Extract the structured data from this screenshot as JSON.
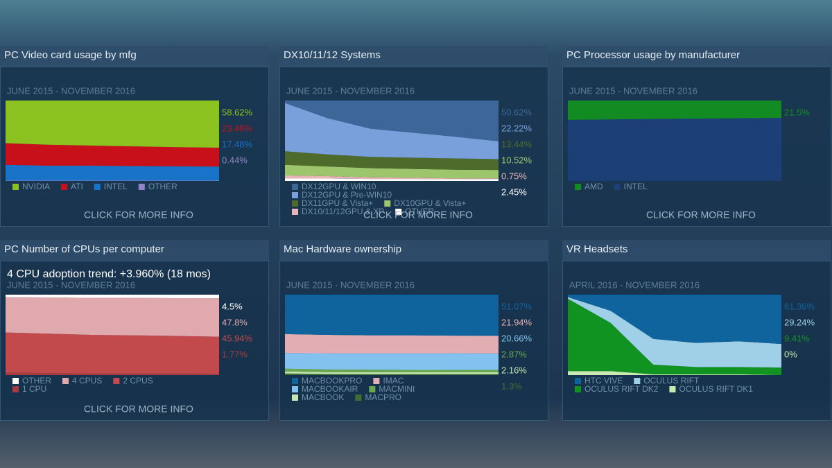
{
  "chart_data": [
    {
      "type": "area",
      "stacked": true,
      "title": "PC Video card usage by mfg",
      "subtitle": "JUNE 2015 - NOVEMBER 2016",
      "footer": "CLICK FOR MORE INFO",
      "categories": [
        null,
        null,
        null,
        null,
        null,
        null
      ],
      "ylim": [
        0,
        100
      ],
      "series": [
        {
          "name": "NVIDIA",
          "color": "#8cc21f",
          "values": [
            53,
            55,
            56,
            57,
            58,
            58.62
          ],
          "value_labels": [
            null,
            null,
            null,
            null,
            null,
            "58.62%"
          ]
        },
        {
          "name": "ATI",
          "color": "#c8101a",
          "values": [
            27,
            26,
            25,
            24.5,
            23.8,
            23.46
          ],
          "value_labels": [
            null,
            null,
            null,
            null,
            null,
            "23.46%"
          ]
        },
        {
          "name": "INTEL",
          "color": "#1874c9",
          "values": [
            19.5,
            18.5,
            18.5,
            18,
            17.8,
            17.48
          ],
          "value_labels": [
            null,
            null,
            null,
            null,
            null,
            "17.48%"
          ]
        },
        {
          "name": "OTHER",
          "color": "#9184c4",
          "values": [
            0.5,
            0.5,
            0.5,
            0.5,
            0.4,
            0.44
          ],
          "value_labels": [
            null,
            null,
            null,
            null,
            null,
            "0.44%"
          ]
        }
      ]
    },
    {
      "type": "area",
      "stacked": true,
      "title": "DX10/11/12 Systems",
      "subtitle": "JUNE 2015 - NOVEMBER 2016",
      "footer": "CLICK FOR MORE INFO",
      "categories": [
        null,
        null,
        null,
        null,
        null,
        null
      ],
      "ylim": [
        0,
        100
      ],
      "series": [
        {
          "name": "DX12GPU & WIN10",
          "color": "#3d6699",
          "values": [
            3,
            22,
            35,
            40,
            45,
            50.62
          ],
          "value_labels": [
            null,
            null,
            null,
            null,
            null,
            "50.62%"
          ]
        },
        {
          "name": "DX12GPU & Pre-WIN10",
          "color": "#7aa0dc",
          "values": [
            60,
            45,
            35,
            31,
            27,
            22.22
          ],
          "value_labels": [
            null,
            null,
            null,
            null,
            null,
            "22.22%"
          ]
        },
        {
          "name": "DX11GPU & Vista+",
          "color": "#4f6b2c",
          "values": [
            17,
            15,
            14,
            14,
            14,
            13.44
          ],
          "value_labels": [
            null,
            null,
            null,
            null,
            null,
            "13.44%"
          ]
        },
        {
          "name": "DX10GPU & Vista+",
          "color": "#9cc56c",
          "values": [
            13,
            12,
            11.5,
            11,
            10.8,
            10.52
          ],
          "value_labels": [
            null,
            null,
            null,
            null,
            null,
            "10.52%"
          ]
        },
        {
          "name": "DX10/11/12GPU & XP",
          "color": "#e6b3b8",
          "values": [
            4,
            3,
            2,
            1.5,
            1,
            0.75
          ],
          "value_labels": [
            null,
            null,
            null,
            null,
            null,
            "0.75%"
          ]
        },
        {
          "name": "OTHER",
          "color": "#ffffff",
          "values": [
            3,
            3,
            2.5,
            2.5,
            2.2,
            2.45
          ],
          "value_labels": [
            null,
            null,
            null,
            null,
            null,
            "2.45%"
          ]
        }
      ]
    },
    {
      "type": "area",
      "stacked": true,
      "title": "PC Processor usage by manufacturer",
      "subtitle": "JUNE 2015 - NOVEMBER 2016",
      "footer": "CLICK FOR MORE INFO",
      "categories": [
        null,
        null,
        null,
        null,
        null,
        null
      ],
      "ylim": [
        0,
        100
      ],
      "series": [
        {
          "name": "AMD",
          "color": "#128c22",
          "values": [
            24,
            23.5,
            23,
            22.5,
            22,
            21.5
          ],
          "value_labels": [
            null,
            null,
            null,
            null,
            null,
            "21.5%"
          ]
        },
        {
          "name": "INTEL",
          "color": "#1d3f78",
          "values": [
            76,
            76.5,
            77,
            77.5,
            78,
            78.5
          ]
        }
      ]
    },
    {
      "type": "area",
      "stacked": true,
      "title": "PC Number of CPUs per computer",
      "subtitle": "JUNE 2015 - NOVEMBER 2016",
      "footer": "CLICK FOR MORE INFO",
      "annotation": "4 CPU adoption trend: +3.960% (18 mos)",
      "categories": [
        null,
        null,
        null,
        null,
        null,
        null
      ],
      "ylim": [
        0,
        100
      ],
      "series": [
        {
          "name": "OTHER",
          "color": "#ffffff",
          "values": [
            3,
            3.5,
            4,
            4,
            4.3,
            4.5
          ],
          "value_labels": [
            null,
            null,
            null,
            null,
            null,
            "4.5%"
          ]
        },
        {
          "name": "4 CPUS",
          "color": "#e0a9ad",
          "values": [
            44,
            45,
            46,
            46.5,
            47,
            47.8
          ],
          "value_labels": [
            null,
            null,
            null,
            null,
            null,
            "47.8%"
          ]
        },
        {
          "name": "2 CPUS",
          "color": "#c24a4c",
          "values": [
            50,
            49,
            48,
            47.5,
            46.8,
            45.94
          ],
          "value_labels": [
            null,
            null,
            null,
            null,
            null,
            "45.94%"
          ]
        },
        {
          "name": "1 CPU",
          "color": "#a83b3e",
          "values": [
            3,
            2.5,
            2,
            2,
            1.9,
            1.77
          ],
          "value_labels": [
            null,
            null,
            null,
            null,
            null,
            "1.77%"
          ]
        }
      ]
    },
    {
      "type": "area",
      "stacked": true,
      "title": "Mac Hardware ownership",
      "subtitle": "JUNE 2015 - NOVEMBER 2016",
      "categories": [
        null,
        null,
        null,
        null,
        null,
        null
      ],
      "ylim": [
        0,
        100
      ],
      "series": [
        {
          "name": "MACBOOKPRO",
          "color": "#10649e",
          "values": [
            49,
            50,
            50.5,
            50.5,
            51,
            51.07
          ],
          "value_labels": [
            null,
            null,
            null,
            null,
            null,
            "51.07%"
          ]
        },
        {
          "name": "IMAC",
          "color": "#e3aeb3",
          "values": [
            23.5,
            23,
            22.5,
            22.5,
            22,
            21.94
          ],
          "value_labels": [
            null,
            null,
            null,
            null,
            null,
            "21.94%"
          ]
        },
        {
          "name": "MACBOOKAIR",
          "color": "#83c2ee",
          "values": [
            19.5,
            20,
            20.3,
            20.5,
            20.6,
            20.66
          ],
          "value_labels": [
            null,
            null,
            null,
            null,
            null,
            "20.66%"
          ]
        },
        {
          "name": "MACMINI",
          "color": "#6aa84f",
          "values": [
            3.5,
            3.3,
            3.1,
            3,
            2.9,
            2.87
          ],
          "value_labels": [
            null,
            null,
            null,
            null,
            null,
            "2.87%"
          ]
        },
        {
          "name": "MACBOOK",
          "color": "#c7e6b3",
          "values": [
            2.5,
            2.3,
            2.3,
            2.2,
            2.2,
            2.16
          ],
          "value_labels": [
            null,
            null,
            null,
            null,
            null,
            "2.16%"
          ]
        },
        {
          "name": "MACPRO",
          "color": "#3f6f35",
          "values": [
            2,
            1.4,
            1.3,
            1.3,
            1.3,
            1.3
          ],
          "value_labels": [
            null,
            null,
            null,
            null,
            null,
            "1.3%"
          ]
        }
      ]
    },
    {
      "type": "area",
      "stacked": true,
      "title": "VR Headsets",
      "subtitle": "APRIL 2016 - NOVEMBER 2016",
      "categories": [
        null,
        null,
        null,
        null,
        null,
        null
      ],
      "ylim": [
        0,
        100
      ],
      "series": [
        {
          "name": "HTC VIVE",
          "color": "#10649e",
          "values": [
            3,
            20,
            55,
            60,
            58,
            61.36
          ],
          "value_labels": [
            null,
            null,
            null,
            null,
            null,
            "61.36%"
          ]
        },
        {
          "name": "OCULUS RIFT",
          "color": "#9fd0e8",
          "values": [
            2,
            15,
            32,
            30,
            32,
            29.24
          ],
          "value_labels": [
            null,
            null,
            null,
            null,
            null,
            "29.24%"
          ]
        },
        {
          "name": "OCULUS RIFT DK2",
          "color": "#119322",
          "values": [
            90,
            60,
            12,
            9,
            9,
            9.41
          ],
          "value_labels": [
            null,
            null,
            null,
            null,
            null,
            "9.41%"
          ]
        },
        {
          "name": "OCULUS RIFT DK1",
          "color": "#c9eab0",
          "values": [
            5,
            5,
            1,
            1,
            1,
            0
          ],
          "value_labels": [
            null,
            null,
            null,
            null,
            null,
            "0%"
          ]
        }
      ]
    }
  ]
}
